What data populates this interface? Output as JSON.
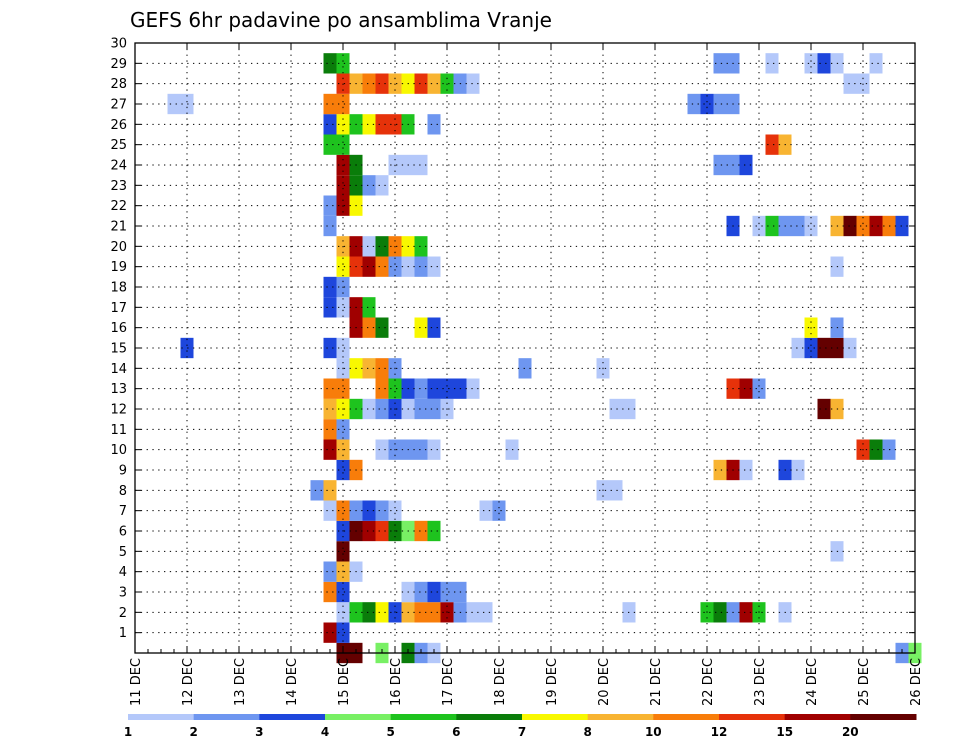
{
  "chart_data": {
    "type": "heatmap",
    "title": "GEFS 6hr padavine po ansamblima Vranje",
    "xlabel": "",
    "ylabel": "",
    "x_ticks": [
      "11 DEC",
      "12 DEC",
      "13 DEC",
      "14 DEC",
      "15 DEC",
      "16 DEC",
      "17 DEC",
      "18 DEC",
      "19 DEC",
      "20 DEC",
      "21 DEC",
      "22 DEC",
      "23 DEC",
      "24 DEC",
      "25 DEC",
      "26 DEC"
    ],
    "y_ticks": [
      "1",
      "2",
      "3",
      "4",
      "5",
      "6",
      "7",
      "8",
      "9",
      "10",
      "11",
      "12",
      "13",
      "14",
      "15",
      "16",
      "17",
      "18",
      "19",
      "20",
      "21",
      "22",
      "23",
      "24",
      "25",
      "26",
      "27",
      "28",
      "29",
      "30"
    ],
    "x_range_days": [
      11,
      26
    ],
    "y_range": [
      0,
      30
    ],
    "step_hours": 6,
    "grid": true,
    "legend_position": "bottom",
    "legend": {
      "colors": [
        "#b4c8fa",
        "#6e96f0",
        "#1e46dc",
        "#78f064",
        "#1ec31e",
        "#0a7d0a",
        "#f8f800",
        "#f8b432",
        "#f87d0a",
        "#e6320a",
        "#a00000",
        "#640000"
      ],
      "labels": [
        "1",
        "2",
        "3",
        "4",
        "5",
        "6",
        "7",
        "8",
        "10",
        "12",
        "15",
        "20"
      ]
    },
    "cells": [
      [
        0,
        15.0,
        11
      ],
      [
        0,
        15.25,
        11
      ],
      [
        0,
        15.75,
        3
      ],
      [
        0,
        16.25,
        5
      ],
      [
        0,
        16.75,
        0
      ],
      [
        0,
        16.5,
        1
      ],
      [
        0,
        26.0,
        3
      ],
      [
        0,
        25.75,
        1
      ],
      [
        1,
        14.75,
        10
      ],
      [
        1,
        15.0,
        2
      ],
      [
        2,
        15.0,
        0
      ],
      [
        2,
        15.25,
        4
      ],
      [
        2,
        15.5,
        5
      ],
      [
        2,
        15.75,
        6
      ],
      [
        2,
        16.0,
        2
      ],
      [
        2,
        16.25,
        7
      ],
      [
        2,
        16.5,
        8
      ],
      [
        2,
        16.75,
        8
      ],
      [
        2,
        17.0,
        10
      ],
      [
        2,
        17.25,
        1
      ],
      [
        2,
        17.5,
        0
      ],
      [
        2,
        17.75,
        0
      ],
      [
        2,
        20.5,
        0
      ],
      [
        2,
        22.0,
        4
      ],
      [
        2,
        22.25,
        5
      ],
      [
        2,
        22.5,
        1
      ],
      [
        2,
        22.75,
        10
      ],
      [
        2,
        23.0,
        4
      ],
      [
        2,
        23.5,
        0
      ],
      [
        3,
        14.75,
        8
      ],
      [
        3,
        15.0,
        2
      ],
      [
        3,
        16.25,
        0
      ],
      [
        3,
        16.5,
        1
      ],
      [
        3,
        16.75,
        2
      ],
      [
        3,
        17.0,
        1
      ],
      [
        3,
        17.25,
        1
      ],
      [
        4,
        14.75,
        1
      ],
      [
        4,
        15.0,
        7
      ],
      [
        4,
        15.25,
        0
      ],
      [
        5,
        15.0,
        11
      ],
      [
        5,
        24.5,
        0
      ],
      [
        6,
        15.0,
        2
      ],
      [
        6,
        15.25,
        11
      ],
      [
        6,
        15.5,
        10
      ],
      [
        6,
        15.75,
        9
      ],
      [
        6,
        16.0,
        5
      ],
      [
        6,
        16.25,
        3
      ],
      [
        6,
        16.5,
        8
      ],
      [
        6,
        16.75,
        4
      ],
      [
        7,
        14.75,
        0
      ],
      [
        7,
        15.0,
        8
      ],
      [
        7,
        15.25,
        1
      ],
      [
        7,
        15.5,
        2
      ],
      [
        7,
        15.75,
        1
      ],
      [
        7,
        16.0,
        0
      ],
      [
        7,
        17.75,
        0
      ],
      [
        7,
        18.0,
        1
      ],
      [
        8,
        14.5,
        1
      ],
      [
        8,
        14.75,
        7
      ],
      [
        8,
        20.0,
        0
      ],
      [
        8,
        20.25,
        0
      ],
      [
        9,
        15.0,
        2
      ],
      [
        9,
        15.25,
        8
      ],
      [
        9,
        22.25,
        7
      ],
      [
        9,
        22.5,
        10
      ],
      [
        9,
        22.75,
        0
      ],
      [
        9,
        23.5,
        2
      ],
      [
        9,
        23.75,
        0
      ],
      [
        10,
        14.75,
        10
      ],
      [
        10,
        15.0,
        7
      ],
      [
        10,
        15.75,
        0
      ],
      [
        10,
        16.0,
        1
      ],
      [
        10,
        16.25,
        1
      ],
      [
        10,
        16.5,
        1
      ],
      [
        10,
        16.75,
        0
      ],
      [
        10,
        18.25,
        0
      ],
      [
        10,
        25.0,
        9
      ],
      [
        10,
        25.25,
        5
      ],
      [
        10,
        25.5,
        1
      ],
      [
        11,
        14.75,
        8
      ],
      [
        11,
        15.0,
        1
      ],
      [
        12,
        14.75,
        7
      ],
      [
        12,
        15.0,
        6
      ],
      [
        12,
        15.25,
        4
      ],
      [
        12,
        15.5,
        0
      ],
      [
        12,
        15.75,
        1
      ],
      [
        12,
        16.0,
        2
      ],
      [
        12,
        16.25,
        0
      ],
      [
        12,
        16.5,
        1
      ],
      [
        12,
        16.75,
        1
      ],
      [
        12,
        17.0,
        0
      ],
      [
        12,
        20.25,
        0
      ],
      [
        12,
        20.5,
        0
      ],
      [
        12,
        24.25,
        11
      ],
      [
        12,
        24.5,
        7
      ],
      [
        13,
        14.75,
        8
      ],
      [
        13,
        15.0,
        8
      ],
      [
        13,
        15.75,
        8
      ],
      [
        13,
        16.0,
        4
      ],
      [
        13,
        16.25,
        2
      ],
      [
        13,
        16.5,
        1
      ],
      [
        13,
        16.75,
        2
      ],
      [
        13,
        17.0,
        2
      ],
      [
        13,
        17.25,
        2
      ],
      [
        13,
        17.5,
        0
      ],
      [
        13,
        22.5,
        9
      ],
      [
        13,
        22.75,
        10
      ],
      [
        13,
        23.0,
        1
      ],
      [
        14,
        15.0,
        0
      ],
      [
        14,
        15.25,
        6
      ],
      [
        14,
        15.5,
        7
      ],
      [
        14,
        15.75,
        8
      ],
      [
        14,
        16.0,
        1
      ],
      [
        14,
        18.5,
        1
      ],
      [
        14,
        20.0,
        0
      ],
      [
        15,
        14.75,
        2
      ],
      [
        15,
        15.0,
        0
      ],
      [
        15,
        12.0,
        2
      ],
      [
        15,
        23.75,
        0
      ],
      [
        15,
        24.0,
        2
      ],
      [
        15,
        24.25,
        11
      ],
      [
        15,
        24.5,
        11
      ],
      [
        15,
        24.75,
        0
      ],
      [
        16,
        15.25,
        10
      ],
      [
        16,
        15.5,
        8
      ],
      [
        16,
        15.75,
        5
      ],
      [
        16,
        16.5,
        6
      ],
      [
        16,
        16.75,
        2
      ],
      [
        16,
        24.0,
        6
      ],
      [
        16,
        24.5,
        1
      ],
      [
        17,
        14.75,
        2
      ],
      [
        17,
        15.0,
        0
      ],
      [
        17,
        15.25,
        10
      ],
      [
        17,
        15.5,
        4
      ],
      [
        18,
        14.75,
        2
      ],
      [
        18,
        15.0,
        1
      ],
      [
        19,
        15.0,
        6
      ],
      [
        19,
        15.25,
        9
      ],
      [
        19,
        15.5,
        10
      ],
      [
        19,
        15.75,
        8
      ],
      [
        19,
        16.0,
        1
      ],
      [
        19,
        16.25,
        0
      ],
      [
        19,
        16.5,
        1
      ],
      [
        19,
        16.75,
        0
      ],
      [
        19,
        24.5,
        0
      ],
      [
        20,
        15.0,
        7
      ],
      [
        20,
        15.25,
        10
      ],
      [
        20,
        15.5,
        0
      ],
      [
        20,
        15.75,
        5
      ],
      [
        20,
        16.0,
        8
      ],
      [
        20,
        16.25,
        6
      ],
      [
        20,
        16.5,
        4
      ],
      [
        21,
        14.75,
        1
      ],
      [
        21,
        22.5,
        2
      ],
      [
        21,
        23.0,
        0
      ],
      [
        21,
        23.25,
        4
      ],
      [
        21,
        23.5,
        1
      ],
      [
        21,
        23.75,
        1
      ],
      [
        21,
        24.0,
        0
      ],
      [
        21,
        24.5,
        7
      ],
      [
        21,
        24.75,
        11
      ],
      [
        21,
        25.0,
        8
      ],
      [
        21,
        25.25,
        10
      ],
      [
        21,
        25.5,
        8
      ],
      [
        21,
        25.75,
        2
      ],
      [
        22,
        14.75,
        1
      ],
      [
        22,
        15.0,
        10
      ],
      [
        22,
        15.25,
        6
      ],
      [
        23,
        15.0,
        10
      ],
      [
        23,
        15.25,
        5
      ],
      [
        23,
        15.5,
        1
      ],
      [
        23,
        15.75,
        0
      ],
      [
        24,
        15.0,
        10
      ],
      [
        24,
        15.25,
        5
      ],
      [
        24,
        16.0,
        0
      ],
      [
        24,
        16.25,
        0
      ],
      [
        24,
        16.5,
        0
      ],
      [
        24,
        22.25,
        1
      ],
      [
        24,
        22.5,
        1
      ],
      [
        24,
        22.75,
        2
      ],
      [
        25,
        14.75,
        4
      ],
      [
        25,
        15.0,
        4
      ],
      [
        25,
        23.25,
        9
      ],
      [
        25,
        23.5,
        7
      ],
      [
        26,
        14.75,
        2
      ],
      [
        26,
        15.0,
        6
      ],
      [
        26,
        15.25,
        4
      ],
      [
        26,
        15.5,
        6
      ],
      [
        26,
        15.75,
        9
      ],
      [
        26,
        16.0,
        9
      ],
      [
        26,
        16.25,
        4
      ],
      [
        26,
        16.75,
        1
      ],
      [
        27,
        14.75,
        8
      ],
      [
        27,
        15.0,
        8
      ],
      [
        27,
        11.75,
        0
      ],
      [
        27,
        12.0,
        0
      ],
      [
        27,
        21.75,
        1
      ],
      [
        27,
        22.0,
        2
      ],
      [
        27,
        22.25,
        1
      ],
      [
        27,
        22.5,
        1
      ],
      [
        28,
        15.0,
        9
      ],
      [
        28,
        15.25,
        7
      ],
      [
        28,
        15.5,
        8
      ],
      [
        28,
        15.75,
        9
      ],
      [
        28,
        16.0,
        7
      ],
      [
        28,
        16.25,
        6
      ],
      [
        28,
        16.5,
        9
      ],
      [
        28,
        16.75,
        7
      ],
      [
        28,
        17.0,
        4
      ],
      [
        28,
        17.25,
        1
      ],
      [
        28,
        17.5,
        0
      ],
      [
        28,
        24.75,
        0
      ],
      [
        28,
        25.0,
        0
      ],
      [
        29,
        14.75,
        5
      ],
      [
        29,
        15.0,
        4
      ],
      [
        29,
        22.25,
        1
      ],
      [
        29,
        22.5,
        1
      ],
      [
        29,
        23.25,
        0
      ],
      [
        29,
        24.0,
        0
      ],
      [
        29,
        24.25,
        2
      ],
      [
        29,
        24.5,
        0
      ],
      [
        29,
        25.25,
        0
      ]
    ]
  }
}
